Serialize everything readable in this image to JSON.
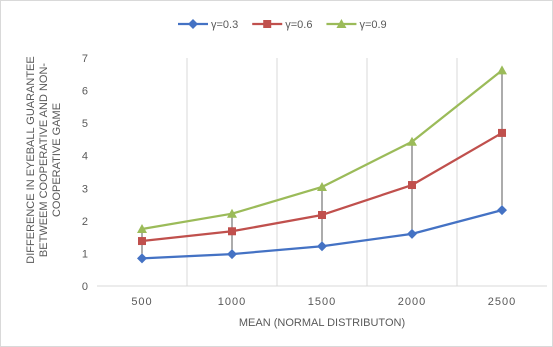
{
  "chart_data": {
    "type": "line",
    "title": "",
    "xlabel": "MEAN (NORMAL DISTRIBUTON)",
    "ylabel_lines": [
      "DIFFERENCE IN EYEBALL GUARANTEE",
      "BETWEEM COOPERATIVE AND NON-",
      "COOPERATIVE GAME"
    ],
    "categories": [
      "500",
      "1000",
      "1500",
      "2000",
      "2500"
    ],
    "ylim": [
      0,
      7
    ],
    "yticks": [
      "0",
      "1",
      "2",
      "3",
      "4",
      "5",
      "6",
      "7"
    ],
    "grid": "vertical",
    "drop_lines": true,
    "legend_position": "top",
    "series": [
      {
        "name": "γ=0.3",
        "values": [
          0.85,
          0.98,
          1.22,
          1.6,
          2.33
        ],
        "color": "#4472c4",
        "marker": "diamond"
      },
      {
        "name": "γ=0.6",
        "values": [
          1.38,
          1.68,
          2.18,
          3.1,
          4.7
        ],
        "color": "#c0504d",
        "marker": "square"
      },
      {
        "name": "γ=0.9",
        "values": [
          1.75,
          2.22,
          3.04,
          4.43,
          6.62
        ],
        "color": "#9bbb59",
        "marker": "triangle"
      }
    ]
  }
}
